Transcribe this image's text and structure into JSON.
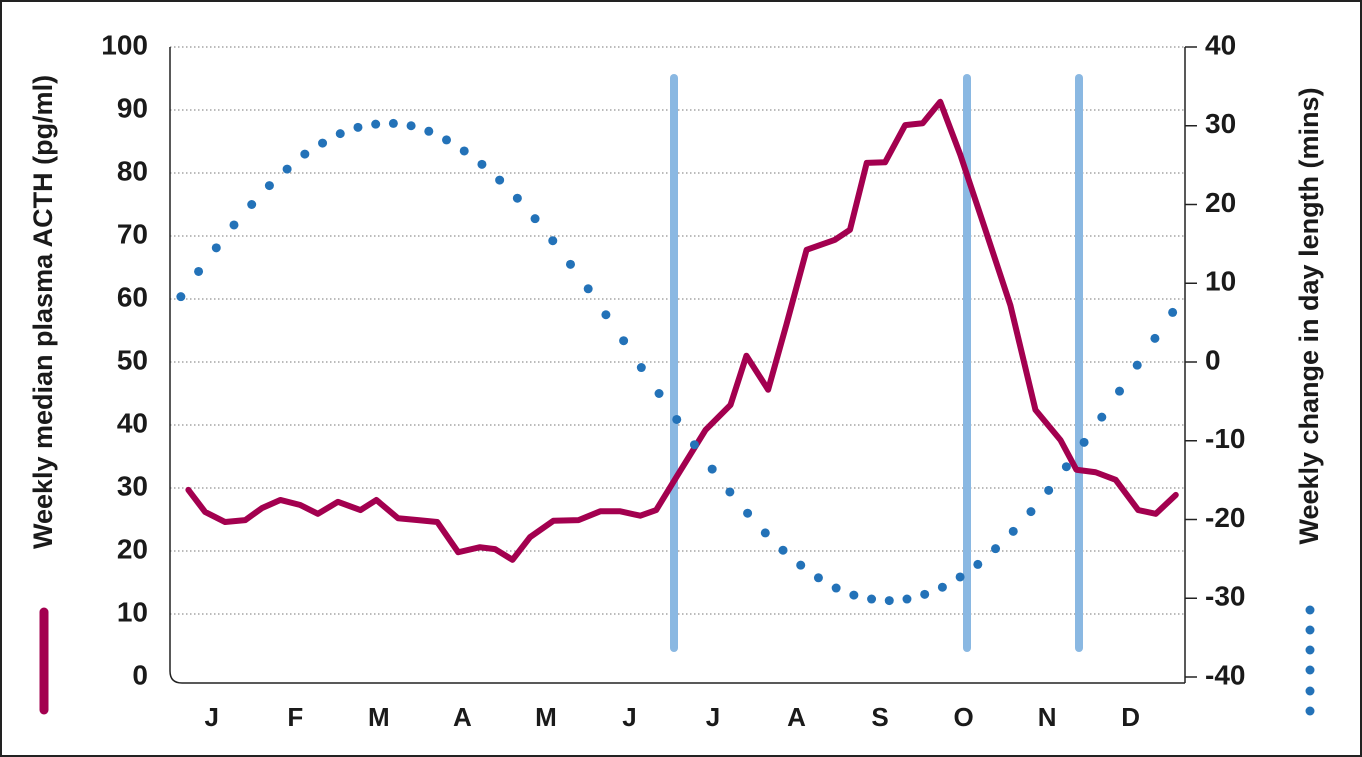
{
  "chart_data": {
    "type": "line",
    "ylabel": "Weekly median plasma ACTH (pg/ml)",
    "y2label": "Weekly change in day length (mins)",
    "xlim": [
      0,
      12.15
    ],
    "xticks": [
      {
        "value": 0.5,
        "label": "J"
      },
      {
        "value": 1.5,
        "label": "F"
      },
      {
        "value": 2.5,
        "label": "M"
      },
      {
        "value": 3.5,
        "label": "A"
      },
      {
        "value": 4.5,
        "label": "M"
      },
      {
        "value": 5.5,
        "label": "J"
      },
      {
        "value": 6.5,
        "label": "J"
      },
      {
        "value": 7.5,
        "label": "A"
      },
      {
        "value": 8.5,
        "label": "S"
      },
      {
        "value": 9.5,
        "label": "O"
      },
      {
        "value": 10.5,
        "label": "N"
      },
      {
        "value": 11.5,
        "label": "D"
      }
    ],
    "ylim": [
      0,
      100
    ],
    "yticks": [
      0,
      10,
      20,
      30,
      40,
      50,
      60,
      70,
      80,
      90,
      100
    ],
    "y2lim": [
      -40,
      40
    ],
    "y2ticks": [
      -40,
      -30,
      -20,
      -10,
      0,
      10,
      20,
      30,
      40
    ],
    "grid": true,
    "series": [
      {
        "color": "#a3004f",
        "style": "line",
        "x": [
          0.22,
          0.42,
          0.66,
          0.9,
          1.1,
          1.32,
          1.56,
          1.77,
          2.01,
          2.28,
          2.47,
          2.73,
          2.97,
          3.2,
          3.45,
          3.71,
          3.89,
          4.1,
          4.31,
          4.59,
          4.89,
          5.15,
          5.39,
          5.63,
          5.82,
          6.06,
          6.41,
          6.71,
          6.9,
          7.16,
          7.38,
          7.62,
          7.96,
          8.14,
          8.34,
          8.56,
          8.8,
          9.01,
          9.22,
          9.46,
          9.76,
          10.06,
          10.36,
          10.66,
          10.85,
          11.08,
          11.32,
          11.59,
          11.8,
          12.04
        ],
        "values": [
          29.7,
          26.2,
          24.6,
          24.9,
          26.8,
          28.1,
          27.3,
          25.9,
          27.8,
          26.5,
          28.1,
          25.2,
          24.9,
          24.6,
          19.8,
          20.6,
          20.3,
          18.6,
          22.2,
          24.8,
          24.9,
          26.3,
          26.3,
          25.6,
          26.5,
          31.7,
          39.2,
          43.2,
          51.0,
          45.6,
          56.0,
          67.8,
          69.4,
          71.0,
          81.6,
          81.7,
          87.6,
          87.9,
          91.3,
          82.9,
          71.0,
          59.0,
          42.4,
          37.6,
          32.9,
          32.5,
          31.3,
          26.5,
          25.9,
          28.9
        ]
      },
      {
        "color": "#2372b8",
        "style": "dots",
        "axis": "y2",
        "x": [
          0.13,
          0.342,
          0.554,
          0.766,
          0.978,
          1.19,
          1.402,
          1.614,
          1.826,
          2.038,
          2.25,
          2.462,
          2.674,
          2.886,
          3.098,
          3.31,
          3.522,
          3.734,
          3.946,
          4.158,
          4.37,
          4.582,
          4.794,
          5.006,
          5.218,
          5.43,
          5.642,
          5.854,
          6.066,
          6.278,
          6.49,
          6.702,
          6.914,
          7.126,
          7.338,
          7.55,
          7.762,
          7.974,
          8.186,
          8.398,
          8.61,
          8.822,
          9.034,
          9.246,
          9.458,
          9.67,
          9.882,
          10.094,
          10.306,
          10.518,
          10.73,
          10.942,
          11.154,
          11.366,
          11.578,
          11.79,
          12.002
        ],
        "values": [
          8.3,
          11.5,
          14.5,
          17.4,
          20.0,
          22.4,
          24.5,
          26.4,
          27.8,
          29.0,
          29.8,
          30.2,
          30.3,
          30.0,
          29.3,
          28.2,
          26.8,
          25.1,
          23.1,
          20.8,
          18.2,
          15.4,
          12.4,
          9.3,
          6.0,
          2.7,
          -0.7,
          -4.0,
          -7.3,
          -10.5,
          -13.6,
          -16.5,
          -19.2,
          -21.7,
          -23.9,
          -25.8,
          -27.4,
          -28.7,
          -29.6,
          -30.1,
          -30.3,
          -30.1,
          -29.5,
          -28.6,
          -27.3,
          -25.7,
          -23.7,
          -21.5,
          -19.0,
          -16.3,
          -13.3,
          -10.2,
          -7.0,
          -3.7,
          -0.4,
          3.0,
          6.3
        ]
      }
    ]
  }
}
